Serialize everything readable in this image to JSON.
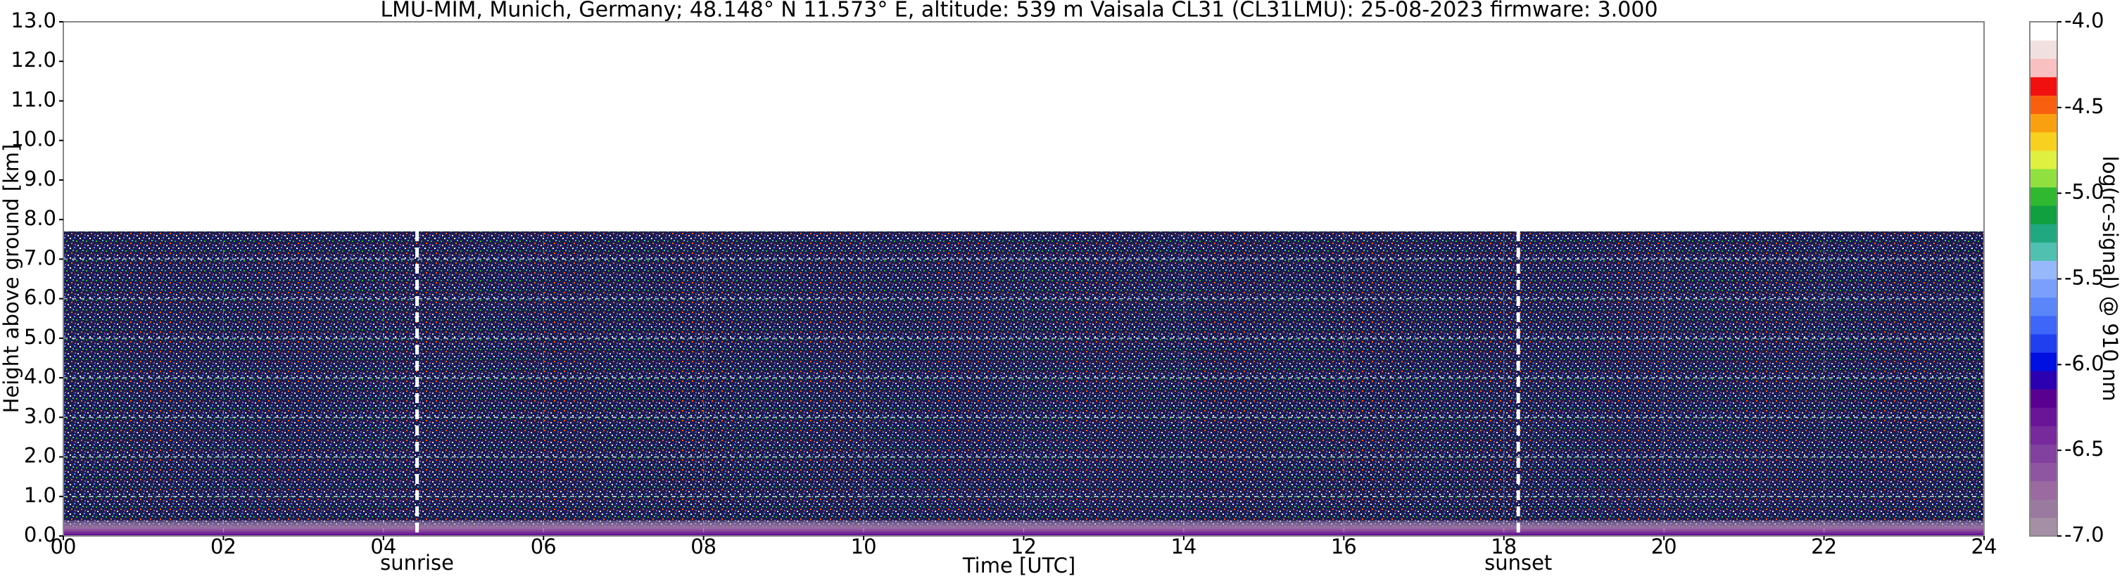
{
  "chart_data": {
    "type": "heatmap",
    "title": "LMU-MIM, Munich, Germany; 48.148° N 11.573° E, altitude: 539 m    Vaisala CL31 (CL31LMU): 25-08-2023    firmware: 3.000",
    "x_label": "Time [UTC]",
    "y_label": "Height above ground [km]",
    "xlim": [
      0,
      24
    ],
    "xticks": [
      {
        "value": 0,
        "label": "00"
      },
      {
        "value": 2,
        "label": "02"
      },
      {
        "value": 4,
        "label": "04"
      },
      {
        "value": 6,
        "label": "06"
      },
      {
        "value": 8,
        "label": "08"
      },
      10,
      12,
      14,
      16,
      18,
      20,
      22,
      24
    ],
    "ylim": [
      0,
      13
    ],
    "yticks": [
      {
        "value": 0,
        "label": "0.0"
      },
      {
        "value": 1,
        "label": "1.0"
      },
      {
        "value": 2,
        "label": "2.0"
      },
      {
        "value": 3,
        "label": "3.0"
      },
      {
        "value": 4,
        "label": "4.0"
      },
      {
        "value": 5,
        "label": "5.0"
      },
      {
        "value": 6,
        "label": "6.0"
      },
      {
        "value": 7,
        "label": "7.0"
      },
      {
        "value": 8,
        "label": "8.0"
      },
      {
        "value": 9,
        "label": "9.0"
      },
      {
        "value": 10,
        "label": "10.0"
      },
      {
        "value": 11,
        "label": "11.0"
      },
      {
        "value": 12,
        "label": "12.0"
      },
      {
        "value": 13,
        "label": "13.0"
      }
    ],
    "grid": true,
    "annotations": [
      {
        "text": "sunrise",
        "x": 4.42
      },
      {
        "text": "sunset",
        "x": 18.18
      }
    ],
    "colorbar": {
      "label": "log(rc-signal) @ 910 nm",
      "lim": [
        -7,
        -4
      ],
      "ticks": [
        {
          "value": -4,
          "label": "-4.0"
        },
        {
          "value": -4.5,
          "label": "-4.5"
        },
        {
          "value": -5,
          "label": "-5.0"
        },
        {
          "value": -5.5,
          "label": "-5.5"
        },
        {
          "value": -6,
          "label": "-6.0"
        },
        {
          "value": -6.5,
          "label": "-6.5"
        },
        {
          "value": -7,
          "label": "-7.0"
        }
      ],
      "colors": [
        "#a58fa5",
        "#9a7a9f",
        "#9a6aa0",
        "#8e56a0",
        "#82409f",
        "#762a9b",
        "#6a1497",
        "#5a0090",
        "#2a00b0",
        "#0010e0",
        "#2040f0",
        "#3e66f8",
        "#5a86fa",
        "#7aa0fb",
        "#98b8fc",
        "#50c0b0",
        "#20a880",
        "#10a040",
        "#30b830",
        "#90e040",
        "#e0f040",
        "#f8d020",
        "#f8a010",
        "#f86010",
        "#f01010",
        "#f8c0c0",
        "#f0e0e0",
        "#ffffff"
      ]
    }
  }
}
